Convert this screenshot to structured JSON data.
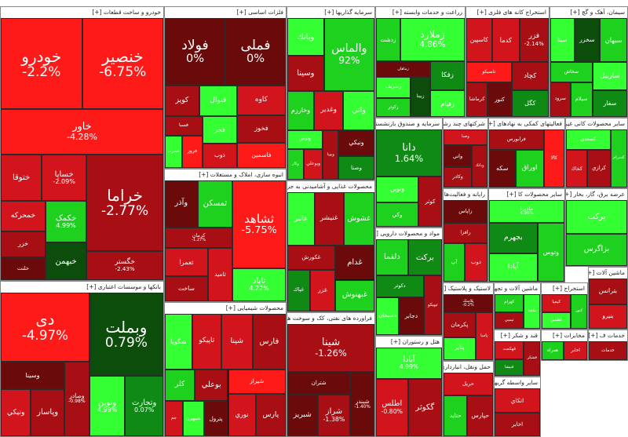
{
  "sectors": [
    {
      "id": "auto",
      "title": "خودرو و ساخت قطعات [+]",
      "tiles": [
        {
          "name": "خنصير",
          "pct": "-6.75%",
          "c": "r1",
          "big": true
        },
        {
          "name": "خودرو",
          "pct": "-2.2%",
          "c": "r1",
          "big": true
        },
        {
          "name": "خاور",
          "pct": "-4.28%",
          "c": "r1",
          "big": true
        },
        {
          "name": "خراما",
          "pct": "-2.77%",
          "c": "r3",
          "big": true
        },
        {
          "name": "خگستر",
          "pct": "-2.43%",
          "c": "r3"
        },
        {
          "name": "خساپا",
          "pct": "-2.09%",
          "c": "r2"
        },
        {
          "name": "ختوقا",
          "pct": "",
          "c": "r2"
        },
        {
          "name": "خکمک",
          "pct": "4.99%",
          "c": "g2"
        },
        {
          "name": "خبهمن",
          "pct": "",
          "c": "g4"
        },
        {
          "name": "خمحركه",
          "pct": "",
          "c": "r2"
        },
        {
          "name": "خزر",
          "pct": "",
          "c": "r3"
        },
        {
          "name": "خلنت",
          "pct": "",
          "c": "r4"
        }
      ]
    },
    {
      "id": "basemetals",
      "title": "فلزات اساسی [+]",
      "tiles": [
        {
          "name": "فملی",
          "pct": "0%",
          "c": "r4",
          "big": true
        },
        {
          "name": "فولاد",
          "pct": "0%",
          "c": "r4",
          "big": true
        },
        {
          "name": "كاوه",
          "pct": "",
          "c": "r2"
        },
        {
          "name": "فخوز",
          "pct": "",
          "c": "r3"
        },
        {
          "name": "فاسمين",
          "pct": "",
          "c": "r1"
        },
        {
          "name": "فنوال",
          "pct": "",
          "c": "g1"
        },
        {
          "name": "كويز",
          "pct": "",
          "c": "r3"
        },
        {
          "name": "فجر",
          "pct": "",
          "c": "g1"
        },
        {
          "name": "ذوب",
          "pct": "",
          "c": "r2"
        },
        {
          "name": "فسبا",
          "pct": "",
          "c": "r3"
        },
        {
          "name": "فروز",
          "pct": "",
          "c": "r1"
        },
        {
          "name": "فسرب",
          "pct": "",
          "c": "g1"
        }
      ]
    },
    {
      "id": "investment",
      "title": "سرمایه گذاریها [+]",
      "tiles": [
        {
          "name": "والماس",
          "pct": "92%",
          "c": "g2",
          "big": true
        },
        {
          "name": "وبانك",
          "pct": "",
          "c": "g1"
        },
        {
          "name": "وسينا",
          "pct": "",
          "c": "r3"
        },
        {
          "name": "واتي",
          "pct": "",
          "c": "g1"
        },
        {
          "name": "وغدير",
          "pct": "",
          "c": "r2"
        },
        {
          "name": "وخارزم",
          "pct": "",
          "c": "g2"
        },
        {
          "name": "ونيكي",
          "pct": "",
          "c": "r4"
        },
        {
          "name": "وصنا",
          "pct": "",
          "c": "g3"
        },
        {
          "name": "وپويا",
          "pct": "",
          "c": "r3"
        },
        {
          "name": "وتوس",
          "pct": "",
          "c": "g1"
        },
        {
          "name": "وبوعلي",
          "pct": "",
          "c": "r2"
        },
        {
          "name": "وكار",
          "pct": "",
          "c": "g2"
        }
      ]
    },
    {
      "id": "agri",
      "title": "زراعت و خدمات وابسته [+]",
      "tiles": [
        {
          "name": "زملارد",
          "pct": "4.86%",
          "c": "g1",
          "big": true
        },
        {
          "name": "زدشت",
          "pct": "",
          "c": "g2"
        },
        {
          "name": "زفكا",
          "pct": "",
          "c": "g3"
        },
        {
          "name": "زقيام",
          "pct": "",
          "c": "g1"
        },
        {
          "name": "زماهان",
          "pct": "",
          "c": "r4"
        },
        {
          "name": "زبينا",
          "pct": "",
          "c": "g4"
        },
        {
          "name": "زشريف",
          "pct": "",
          "c": "g1"
        },
        {
          "name": "زكوثر",
          "pct": "",
          "c": "g2"
        }
      ]
    },
    {
      "id": "sugar",
      "title": "استخراج کانه های فلزی [+]",
      "tiles": [
        {
          "name": "فزر",
          "pct": "-2.14%",
          "c": "r3"
        },
        {
          "name": "كدما",
          "pct": "",
          "c": "r2"
        },
        {
          "name": "كاسپين",
          "pct": "",
          "c": "r2"
        },
        {
          "name": "كچاد",
          "pct": "",
          "c": "r3"
        },
        {
          "name": "كگل",
          "pct": "",
          "c": "g3"
        },
        {
          "name": "تاصيكو",
          "pct": "",
          "c": "r1"
        },
        {
          "name": "كنور",
          "pct": "",
          "c": "r4"
        },
        {
          "name": "كرماشا",
          "pct": "",
          "c": "r3"
        }
      ]
    },
    {
      "id": "cement",
      "title": "سیمان، آهک و گچ [+]",
      "tiles": [
        {
          "name": "سبهان",
          "pct": "",
          "c": "g2"
        },
        {
          "name": "سخزر",
          "pct": "",
          "c": "g4"
        },
        {
          "name": "سيتا",
          "pct": "",
          "c": "g1"
        },
        {
          "name": "ساربيل",
          "pct": "",
          "c": "g1"
        },
        {
          "name": "سفار",
          "pct": "",
          "c": "g3"
        },
        {
          "name": "سخاش",
          "pct": "",
          "c": "g2"
        },
        {
          "name": "سيلام",
          "pct": "",
          "c": "g2"
        },
        {
          "name": "سرود",
          "pct": "",
          "c": "r3"
        }
      ]
    },
    {
      "id": "bank",
      "title": "بانکها و موسسات اعتباری [+]",
      "tiles": [
        {
          "name": "وبملت",
          "pct": "0.79%",
          "c": "g4",
          "big": true
        },
        {
          "name": "وتجارت",
          "pct": "0.07%",
          "c": "g3"
        },
        {
          "name": "ونوين",
          "pct": "4.99%",
          "c": "g1"
        },
        {
          "name": "دی",
          "pct": "-4.97%",
          "c": "r1",
          "big": true
        },
        {
          "name": "وصادر",
          "pct": "-0.98%",
          "c": "r3"
        },
        {
          "name": "وسينا",
          "pct": "",
          "c": "r4"
        },
        {
          "name": "وپاسار",
          "pct": "",
          "c": "r3"
        },
        {
          "name": "ونيكي",
          "pct": "",
          "c": "r2"
        }
      ]
    },
    {
      "id": "realestate",
      "title": "انبوه سازی، املاک و مستغلات [+]",
      "tiles": [
        {
          "name": "ثشاهد",
          "pct": "-5.75%",
          "c": "r1",
          "big": true
        },
        {
          "name": "ثاباد",
          "pct": "4.22%",
          "c": "g1"
        },
        {
          "name": "ثمسكن",
          "pct": "",
          "c": "g2"
        },
        {
          "name": "وآذر",
          "pct": "",
          "c": "r4"
        },
        {
          "name": "كرمان",
          "pct": "-1.27%",
          "c": "r3"
        },
        {
          "name": "ثامید",
          "pct": "",
          "c": "r2"
        },
        {
          "name": "ثعمرا",
          "pct": "",
          "c": "r2"
        },
        {
          "name": "ساخت",
          "pct": "",
          "c": "r3"
        }
      ]
    },
    {
      "id": "food",
      "title": "محصولات غذایی و آشامیدنی به جز قند و شکر [+]",
      "tiles": [
        {
          "name": "غشوش",
          "pct": "",
          "c": "g2"
        },
        {
          "name": "غنيشر",
          "pct": "",
          "c": "r3"
        },
        {
          "name": "غالبر",
          "pct": "",
          "c": "g1"
        },
        {
          "name": "غدام",
          "pct": "",
          "c": "r4"
        },
        {
          "name": "غبهنوش",
          "pct": "",
          "c": "g2"
        },
        {
          "name": "غكورش",
          "pct": "",
          "c": "r3"
        },
        {
          "name": "غزر",
          "pct": "",
          "c": "r2"
        },
        {
          "name": "غپاك",
          "pct": "",
          "c": "g3"
        }
      ]
    },
    {
      "id": "bank2",
      "title": "سرمایه و صندوق بازنشستگی به جز [+]",
      "tiles": [
        {
          "name": "دانا",
          "pct": "1.64%",
          "c": "g3",
          "big": true
        },
        {
          "name": "كوثر",
          "pct": "",
          "c": "r3"
        },
        {
          "name": "ونوين",
          "pct": "",
          "c": "g1"
        },
        {
          "name": "وكي",
          "pct": "",
          "c": "g2"
        }
      ]
    },
    {
      "id": "pharma",
      "title": "مواد و محصولات دارویی [+]",
      "tiles": [
        {
          "name": "بركت",
          "pct": "",
          "c": "g3"
        },
        {
          "name": "دلقما",
          "pct": "",
          "c": "g2"
        },
        {
          "name": "تيپيكو",
          "pct": "",
          "c": "r3"
        },
        {
          "name": "دكوثر",
          "pct": "",
          "c": "g3"
        },
        {
          "name": "دجابر",
          "pct": "",
          "c": "r4"
        },
        {
          "name": "دسبحان",
          "pct": "",
          "c": "g1"
        }
      ]
    },
    {
      "id": "hotel",
      "title": "هتل و رستوران [+]",
      "tiles": [
        {
          "name": "آبادا",
          "pct": "4.99%",
          "c": "g1"
        },
        {
          "name": "گكوثر",
          "pct": "",
          "c": "r3"
        },
        {
          "name": "اطلس",
          "pct": "-0.80%",
          "c": "r2"
        }
      ]
    },
    {
      "id": "chem",
      "title": "محصولات شیمیایی [+]",
      "tiles": [
        {
          "name": "فارس",
          "pct": "",
          "c": "r3"
        },
        {
          "name": "شپنا",
          "pct": "",
          "c": "r2"
        },
        {
          "name": "تاپيكو",
          "pct": "",
          "c": "r2"
        },
        {
          "name": "شگويا",
          "pct": "",
          "c": "g1"
        },
        {
          "name": "شيراز",
          "pct": "",
          "c": "r1"
        },
        {
          "name": "پارس",
          "pct": "",
          "c": "r3"
        },
        {
          "name": "نوري",
          "pct": "",
          "c": "r2"
        },
        {
          "name": "بوعلي",
          "pct": "",
          "c": "r3"
        },
        {
          "name": "كلر",
          "pct": "",
          "c": "g2"
        },
        {
          "name": "پترول",
          "pct": "",
          "c": "r4"
        },
        {
          "name": "شبهرن",
          "pct": "",
          "c": "g1"
        },
        {
          "name": "جم",
          "pct": "",
          "c": "r2"
        }
      ]
    },
    {
      "id": "refinery",
      "title": "فراورده های نفتی، کک و سوخت هسته ای [+]",
      "tiles": [
        {
          "name": "شينا",
          "pct": "-1.26%",
          "c": "r3",
          "big": true
        },
        {
          "name": "شبندر",
          "pct": "-1.40%",
          "c": "r4"
        },
        {
          "name": "شتران",
          "pct": "",
          "c": "r4"
        },
        {
          "name": "شراز",
          "pct": "-1.38%",
          "c": "r3"
        },
        {
          "name": "شبريز",
          "pct": "",
          "c": "r4"
        }
      ]
    },
    {
      "id": "trade",
      "title": "شرکتهای چند رشته ای صنعتی [+]",
      "tiles": [
        {
          "name": "وصنا",
          "pct": "",
          "c": "r2"
        },
        {
          "name": "وبانك",
          "pct": "",
          "c": "r3"
        },
        {
          "name": "واتي",
          "pct": "",
          "c": "r4"
        },
        {
          "name": "وكادر",
          "pct": "",
          "c": "r3"
        }
      ]
    },
    {
      "id": "misc",
      "title": "فعالیتهای کمکی به نهادهای [+]",
      "tiles": [
        {
          "name": "كالا",
          "pct": "",
          "c": "r1"
        },
        {
          "name": "فرابورس",
          "pct": "",
          "c": "r3"
        },
        {
          "name": "اوراق",
          "pct": "",
          "c": "g2"
        },
        {
          "name": "سکه",
          "pct": "",
          "c": "r4"
        }
      ]
    },
    {
      "id": "mineral",
      "title": "سایر محصولات کانی غیر [+]",
      "tiles": [
        {
          "name": "كسرام",
          "pct": "",
          "c": "g2"
        },
        {
          "name": "كسعدي",
          "pct": "",
          "c": "g1"
        },
        {
          "name": "كرازي",
          "pct": "",
          "c": "r3"
        },
        {
          "name": "كخاك",
          "pct": "",
          "c": "r2"
        }
      ]
    },
    {
      "id": "telecom",
      "title": "رایانه و فعالیت‌های و [+]",
      "tiles": [
        {
          "name": "زاپاس",
          "pct": "",
          "c": "r4"
        },
        {
          "name": "رافزا",
          "pct": "",
          "c": "r3"
        },
        {
          "name": "ذوب",
          "pct": "",
          "c": "r2"
        },
        {
          "name": "آپ",
          "pct": "",
          "c": "g2"
        }
      ]
    },
    {
      "id": "oil",
      "title": "سایر محصولات کا [+]",
      "tiles": [
        {
          "name": "مادیرا",
          "pct": "4.96%",
          "c": "g1"
        },
        {
          "name": "وتوس",
          "pct": "",
          "c": "g2"
        },
        {
          "name": "بجهرم",
          "pct": "",
          "c": "g3"
        },
        {
          "name": "آپادا",
          "pct": "",
          "c": "g1"
        }
      ]
    },
    {
      "id": "elec",
      "title": "عرضه برق، گاز، بخار [+]",
      "tiles": [
        {
          "name": "بركت",
          "pct": "",
          "c": "g1"
        },
        {
          "name": "بزاگرس",
          "pct": "",
          "c": "g2"
        }
      ]
    },
    {
      "id": "plastic",
      "title": "لاستیک و پلاستیک [+]",
      "tiles": [
        {
          "name": "پلاسك",
          "pct": "-0.2%",
          "c": "r4"
        },
        {
          "name": "پاسا",
          "pct": "",
          "c": "r2"
        },
        {
          "name": "پكرمان",
          "pct": "",
          "c": "r3"
        },
        {
          "name": "پتاير",
          "pct": "",
          "c": "g1"
        }
      ]
    },
    {
      "id": "transport",
      "title": "حمل ونقل، انبارداری [+]",
      "tiles": [
        {
          "name": "حریل",
          "pct": "",
          "c": "r2"
        },
        {
          "name": "حپارس",
          "pct": "",
          "c": "r3"
        },
        {
          "name": "حتاید",
          "pct": "",
          "c": "g2"
        }
      ]
    },
    {
      "id": "sugar2",
      "title": "قند و شکر [+]",
      "tiles": [
        {
          "name": "قشكر",
          "pct": "",
          "c": "r3"
        },
        {
          "name": "قهكمت",
          "pct": "",
          "c": "r2"
        },
        {
          "name": "قنيشا",
          "pct": "",
          "c": "g3"
        }
      ]
    },
    {
      "id": "machinery",
      "title": "ماشین آلات و تجهیزات [+]",
      "tiles": [
        {
          "name": "تكشا",
          "pct": "",
          "c": "g1"
        },
        {
          "name": "كهرام",
          "pct": "",
          "c": "g2"
        },
        {
          "name": "تپمپي",
          "pct": "",
          "c": "r3"
        }
      ]
    },
    {
      "id": "infra",
      "title": "سایر واسطه گریهای [+]",
      "tiles": [
        {
          "name": "اتكاي",
          "pct": "",
          "c": "r2"
        },
        {
          "name": "اخابر",
          "pct": "",
          "c": "r3"
        }
      ]
    },
    {
      "id": "extra1",
      "title": "استخراج [+]",
      "tiles": [
        {
          "name": "كنور",
          "pct": "",
          "c": "g2"
        },
        {
          "name": "کيميا",
          "pct": "",
          "c": "r2"
        },
        {
          "name": "كطبس",
          "pct": "",
          "c": "g1"
        }
      ]
    },
    {
      "id": "extra2",
      "title": "ماشین آلات [+]",
      "tiles": [
        {
          "name": "بترانس",
          "pct": "",
          "c": "r3"
        },
        {
          "name": "بنيرو",
          "pct": "",
          "c": "r2"
        }
      ]
    },
    {
      "id": "extra3",
      "title": "مخابرات [+]",
      "tiles": [
        {
          "name": "اخابر",
          "pct": "",
          "c": "r2"
        },
        {
          "name": "همراه",
          "pct": "",
          "c": "g2"
        }
      ]
    },
    {
      "id": "extra4",
      "title": "خدمات ف [+]",
      "tiles": [
        {
          "name": "خدمات",
          "pct": "",
          "c": "r3"
        }
      ]
    }
  ]
}
